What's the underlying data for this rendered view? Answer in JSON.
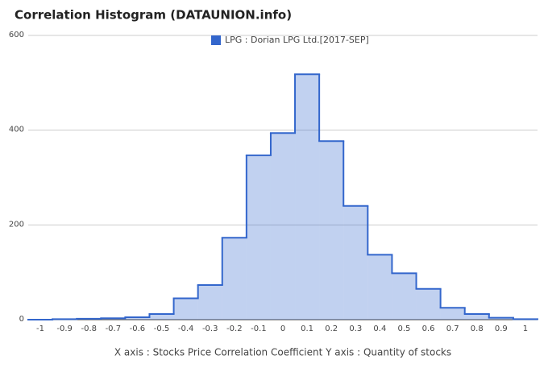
{
  "chart_data": {
    "type": "step-area",
    "title": "Correlation Histogram (DATAUNION.info)",
    "x_label": "X axis : Stocks Price Correlation Coefficient  Y axis : Quantity of stocks",
    "x": [
      -1,
      -0.9,
      -0.8,
      -0.7,
      -0.6,
      -0.5,
      -0.4,
      -0.3,
      -0.2,
      -0.1,
      0,
      0.1,
      0.2,
      0.3,
      0.4,
      0.5,
      0.6,
      0.7,
      0.8,
      0.9,
      1
    ],
    "series": [
      {
        "name": "LPG : Dorian LPG Ltd.[2017-SEP]",
        "color": "#3366cc",
        "values": [
          0,
          1,
          2,
          3,
          5,
          12,
          45,
          73,
          173,
          347,
          394,
          518,
          377,
          240,
          137,
          98,
          65,
          25,
          12,
          4,
          1
        ]
      }
    ],
    "xlim": [
      -1.05,
      1.05
    ],
    "xticks": [
      -1,
      -0.9,
      -0.8,
      -0.7,
      -0.6,
      -0.5,
      -0.4,
      -0.3,
      -0.2,
      -0.1,
      0,
      0.1,
      0.2,
      0.3,
      0.4,
      0.5,
      0.6,
      0.7,
      0.8,
      0.9,
      1
    ],
    "ylim": [
      0,
      600
    ],
    "yticks": [
      0,
      200,
      400,
      600
    ],
    "grid": true,
    "legend": "top"
  }
}
